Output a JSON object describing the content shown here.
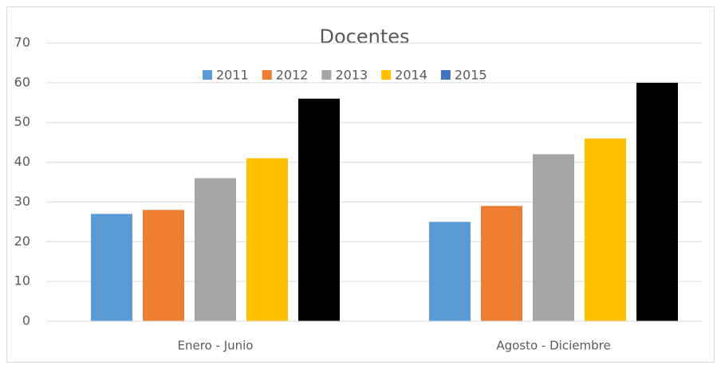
{
  "chart_data": {
    "type": "bar",
    "title": "Docentes",
    "categories": [
      "Enero - Junio",
      "Agosto - Diciembre"
    ],
    "series": [
      {
        "name": "2011",
        "color": "#5b9bd5",
        "values": [
          27,
          25
        ]
      },
      {
        "name": "2012",
        "color": "#ed7d31",
        "values": [
          28,
          29
        ]
      },
      {
        "name": "2013",
        "color": "#a5a5a5",
        "values": [
          36,
          42
        ]
      },
      {
        "name": "2014",
        "color": "#ffc000",
        "values": [
          41,
          46
        ]
      },
      {
        "name": "2015",
        "color": "#000000",
        "legend_color": "#4472c4",
        "values": [
          56,
          60
        ]
      }
    ],
    "ylim": [
      0,
      70
    ],
    "yticks": [
      0,
      10,
      20,
      30,
      40,
      50,
      60,
      70
    ],
    "grid": true,
    "legend": "top"
  }
}
